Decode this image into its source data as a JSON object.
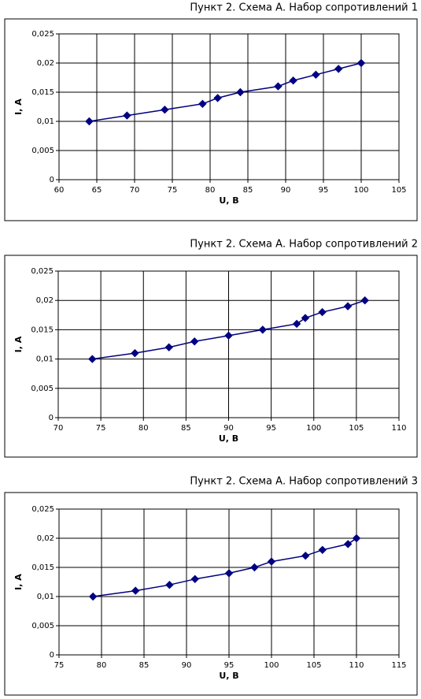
{
  "chart_data": [
    {
      "type": "line",
      "title": "Пункт 2. Схема А. Набор сопротивлений 1",
      "x_label": "U, В",
      "y_label": "I, A",
      "x": [
        64,
        69,
        74,
        79,
        81,
        84,
        89,
        91,
        94,
        97,
        100
      ],
      "series": [
        {
          "color": "#000080",
          "values": [
            0.01,
            0.011,
            0.012,
            0.013,
            0.014,
            0.015,
            0.016,
            0.017,
            0.018,
            0.019,
            0.02
          ]
        }
      ],
      "xlim": [
        60,
        105
      ],
      "xticks": [
        60,
        65,
        70,
        75,
        80,
        85,
        90,
        95,
        100,
        105
      ],
      "ylim": [
        0,
        0.025
      ],
      "yticks": [
        0,
        {
          "value": 0.005,
          "label": "0,005"
        },
        {
          "value": 0.01,
          "label": "0,01"
        },
        {
          "value": 0.015,
          "label": "0,015"
        },
        {
          "value": 0.02,
          "label": "0,02"
        },
        {
          "value": 0.025,
          "label": "0,025"
        }
      ],
      "grid": true
    },
    {
      "type": "line",
      "title": "Пункт 2. Схема А. Набор сопротивлений 2",
      "x_label": "U, В",
      "y_label": "I, A",
      "x": [
        74,
        79,
        83,
        86,
        90,
        94,
        98,
        99,
        101,
        104,
        106
      ],
      "series": [
        {
          "color": "#000080",
          "values": [
            0.01,
            0.011,
            0.012,
            0.013,
            0.014,
            0.015,
            0.016,
            0.017,
            0.018,
            0.019,
            0.02
          ]
        }
      ],
      "xlim": [
        70,
        110
      ],
      "xticks": [
        70,
        75,
        80,
        85,
        90,
        95,
        100,
        105,
        110
      ],
      "ylim": [
        0,
        0.025
      ],
      "yticks": [
        0,
        {
          "value": 0.005,
          "label": "0,005"
        },
        {
          "value": 0.01,
          "label": "0,01"
        },
        {
          "value": 0.015,
          "label": "0,015"
        },
        {
          "value": 0.02,
          "label": "0,02"
        },
        {
          "value": 0.025,
          "label": "0,025"
        }
      ],
      "grid": true
    },
    {
      "type": "line",
      "title": "Пункт 2. Схема А. Набор сопротивлений 3",
      "x_label": "U, В",
      "y_label": "I, A",
      "x": [
        79,
        84,
        88,
        91,
        95,
        98,
        100,
        104,
        106,
        109,
        110
      ],
      "series": [
        {
          "color": "#000080",
          "values": [
            0.01,
            0.011,
            0.012,
            0.013,
            0.014,
            0.015,
            0.016,
            0.017,
            0.018,
            0.019,
            0.02
          ]
        }
      ],
      "xlim": [
        75,
        115
      ],
      "xticks": [
        75,
        80,
        85,
        90,
        95,
        100,
        105,
        110,
        115
      ],
      "ylim": [
        0,
        0.025
      ],
      "yticks": [
        0,
        {
          "value": 0.005,
          "label": "0,005"
        },
        {
          "value": 0.01,
          "label": "0,01"
        },
        {
          "value": 0.015,
          "label": "0,015"
        },
        {
          "value": 0.02,
          "label": "0,02"
        },
        {
          "value": 0.025,
          "label": "0,025"
        }
      ],
      "grid": true
    }
  ]
}
